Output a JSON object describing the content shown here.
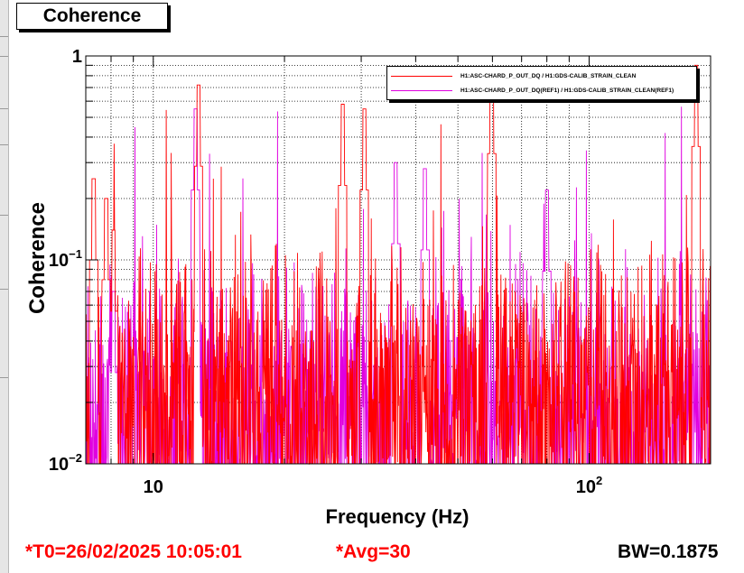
{
  "title": "Coherence",
  "footer": {
    "t0": "*T0=26/02/2025 10:05:01",
    "avg": "*Avg=30",
    "bw": "BW=0.1875"
  },
  "colors": {
    "current": "#ff0000",
    "reference": "#e000e0",
    "footer_red": "#ff0000",
    "grid": "#000000"
  },
  "chart_data": {
    "type": "line",
    "xlabel": "Frequency (Hz)",
    "ylabel": "Coherence",
    "xscale": "log",
    "yscale": "log",
    "xlim": [
      7,
      190
    ],
    "ylim": [
      0.01,
      1
    ],
    "grid": true,
    "legend_position": "top-right",
    "x_tick_labels": [
      {
        "value": 10,
        "label": "10"
      },
      {
        "value": 100,
        "label": "10^2",
        "base": "10",
        "exp": "2"
      }
    ],
    "y_tick_labels": [
      {
        "value": 1,
        "label": "1"
      },
      {
        "value": 0.1,
        "label": "10^-1",
        "base": "10",
        "exp": "−1"
      },
      {
        "value": 0.01,
        "label": "10^-2",
        "base": "10",
        "exp": "−2"
      }
    ],
    "series": [
      {
        "name": "H1:ASC-CHARD_P_OUT_DQ / H1:GDS-CALIB_STRAIN_CLEAN",
        "color": "#ff0000",
        "noise_floor": 0.03,
        "peaks": [
          {
            "x": 7.3,
            "y": 0.25
          },
          {
            "x": 7.8,
            "y": 0.2
          },
          {
            "x": 8.1,
            "y": 0.14
          },
          {
            "x": 12.7,
            "y": 0.72
          },
          {
            "x": 27.2,
            "y": 0.58
          },
          {
            "x": 30.5,
            "y": 0.55
          },
          {
            "x": 59.8,
            "y": 0.83
          },
          {
            "x": 176.0,
            "y": 0.9
          }
        ]
      },
      {
        "name": "H1:ASC-CHARD_P_OUT_DQ(REF1) / H1:GDS-CALIB_STRAIN_CLEAN(REF1)",
        "color": "#e000e0",
        "noise_floor": 0.025,
        "peaks": [
          {
            "x": 8.1,
            "y": 0.07
          },
          {
            "x": 12.5,
            "y": 0.55
          },
          {
            "x": 36.0,
            "y": 0.3
          },
          {
            "x": 42.0,
            "y": 0.28
          },
          {
            "x": 80.0,
            "y": 0.22
          }
        ]
      }
    ]
  }
}
